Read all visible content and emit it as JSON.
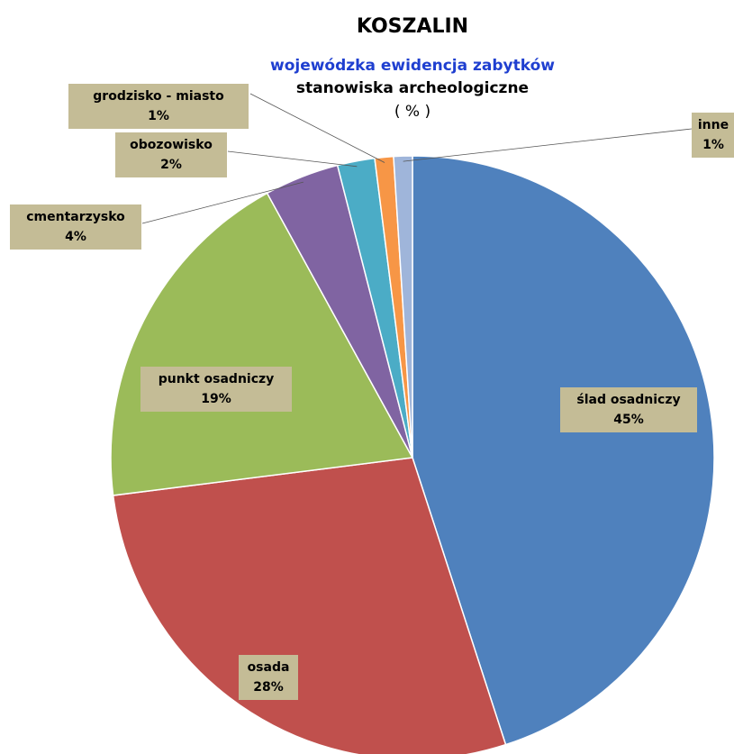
{
  "chart_data": {
    "type": "pie",
    "title": "KOSZALIN",
    "subtitle": "wojewódzka ewidencja zabytków",
    "subtitle2": "stanowiska archeologiczne",
    "unit_label": "( % )",
    "categories": [
      "ślad osadniczy",
      "osada",
      "punkt osadniczy",
      "cmentarzysko",
      "obozowisko",
      "grodzisko - miasto",
      "inne"
    ],
    "values": [
      45,
      28,
      19,
      4,
      2,
      1,
      1
    ],
    "value_labels": [
      "45%",
      "28%",
      "19%",
      "4%",
      "2%",
      "1%",
      "1%"
    ],
    "colors": [
      "#4f81bd",
      "#c0504d",
      "#9bbb59",
      "#8064a2",
      "#4bacc6",
      "#f79646",
      "#9fb5da"
    ]
  }
}
